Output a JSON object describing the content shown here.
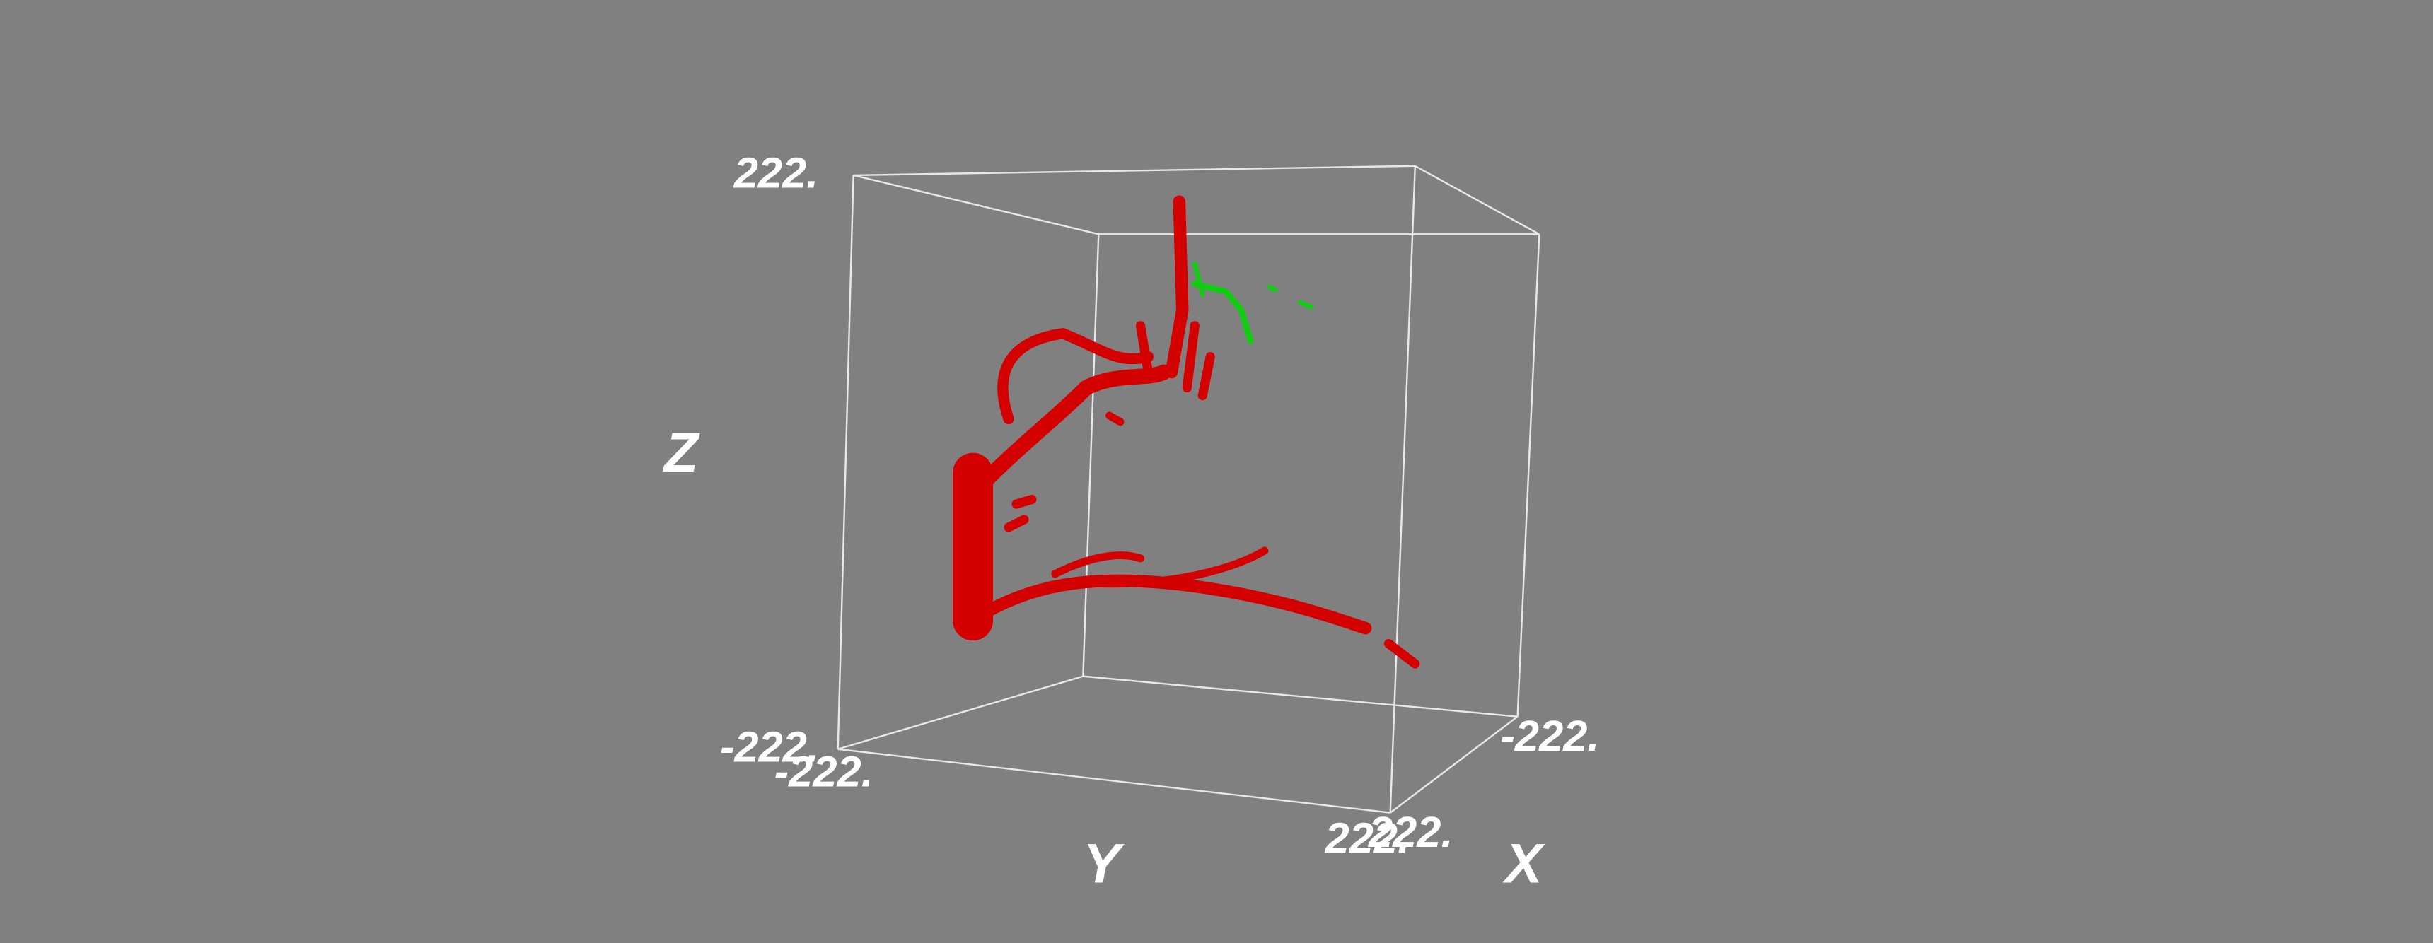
{
  "axes": {
    "z": {
      "label": "Z",
      "max": "222.",
      "min": "-222."
    },
    "y": {
      "label": "Y",
      "min": "-222.",
      "max": "222."
    },
    "x": {
      "label": "X",
      "min": "222.",
      "max": "-222."
    }
  }
}
